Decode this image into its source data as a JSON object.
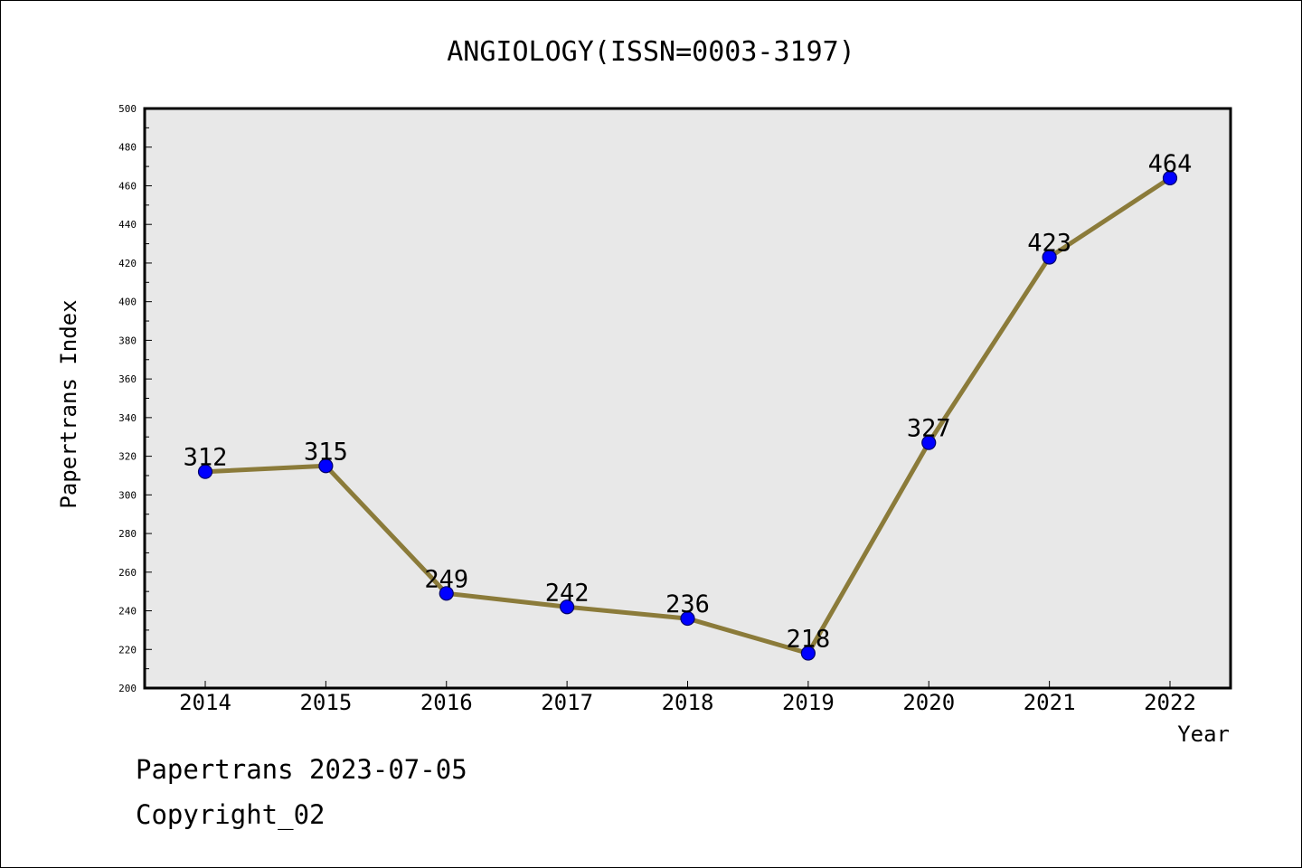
{
  "chart_data": {
    "type": "line",
    "title": "ANGIOLOGY(ISSN=0003-3197)",
    "xlabel": "Year",
    "ylabel": "Papertrans Index",
    "categories": [
      "2014",
      "2015",
      "2016",
      "2017",
      "2018",
      "2019",
      "2020",
      "2021",
      "2022"
    ],
    "series": [
      {
        "values": [
          312,
          315,
          249,
          242,
          236,
          218,
          327,
          423,
          464
        ]
      }
    ],
    "ylim": [
      200,
      500
    ],
    "yticks": [
      200,
      220,
      240,
      260,
      280,
      300,
      320,
      340,
      360,
      380,
      400,
      420,
      440,
      460,
      480,
      500
    ],
    "grid": false,
    "legend": "none",
    "colors": {
      "line": "#8B7B3A",
      "marker": "#0000FF",
      "plot_bg": "#E8E8E8"
    }
  },
  "footer": {
    "line1": "Papertrans 2023-07-05",
    "line2": "Copyright_02"
  }
}
